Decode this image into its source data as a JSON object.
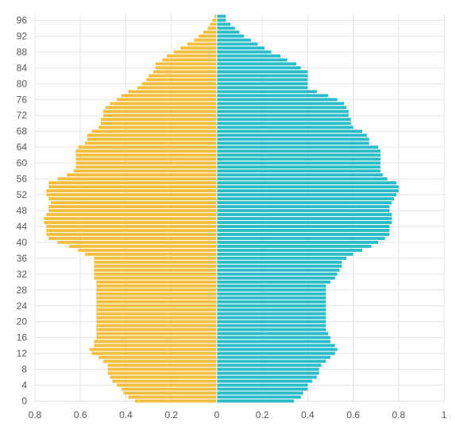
{
  "chart_data": {
    "type": "bar",
    "orientation": "horizontal",
    "subtype": "population-pyramid",
    "title": "",
    "xlabel": "",
    "ylabel": "",
    "grid": true,
    "legend": "none",
    "xlim": [
      -0.8,
      1.0
    ],
    "x_tick_values": [
      -0.8,
      -0.6,
      -0.4,
      -0.2,
      0,
      0.2,
      0.4,
      0.6,
      0.8,
      1
    ],
    "x_tick_labels": [
      "0.8",
      "0.6",
      "0.4",
      "0.2",
      "0",
      "0.2",
      "0.4",
      "0.6",
      "0.8",
      "1"
    ],
    "y_tick_labels": [
      "0",
      "4",
      "8",
      "12",
      "16",
      "20",
      "24",
      "28",
      "32",
      "36",
      "40",
      "44",
      "48",
      "52",
      "56",
      "60",
      "64",
      "68",
      "72",
      "76",
      "80",
      "84",
      "88",
      "92",
      "96"
    ],
    "categories": [
      "0",
      "1",
      "2",
      "3",
      "4",
      "5",
      "6",
      "7",
      "8",
      "9",
      "10",
      "11",
      "12",
      "13",
      "14",
      "15",
      "16",
      "17",
      "18",
      "19",
      "20",
      "21",
      "22",
      "23",
      "24",
      "25",
      "26",
      "27",
      "28",
      "29",
      "30",
      "31",
      "32",
      "33",
      "34",
      "35",
      "36",
      "37",
      "38",
      "39",
      "40",
      "41",
      "42",
      "43",
      "44",
      "45",
      "46",
      "47",
      "48",
      "49",
      "50",
      "51",
      "52",
      "53",
      "54",
      "55",
      "56",
      "57",
      "58",
      "59",
      "60",
      "61",
      "62",
      "63",
      "64",
      "65",
      "66",
      "67",
      "68",
      "69",
      "70",
      "71",
      "72",
      "73",
      "74",
      "75",
      "76",
      "77",
      "78",
      "79",
      "80",
      "81",
      "82",
      "83",
      "84",
      "85",
      "86",
      "87",
      "88",
      "89",
      "90",
      "91",
      "92",
      "93",
      "94",
      "95",
      "96",
      "97"
    ],
    "colors": {
      "left": "#F5BE3F",
      "right": "#2BBCC9"
    },
    "series": [
      {
        "side": "left",
        "values": [
          0.36,
          0.39,
          0.41,
          0.42,
          0.44,
          0.46,
          0.47,
          0.48,
          0.48,
          0.48,
          0.5,
          0.52,
          0.55,
          0.56,
          0.54,
          0.54,
          0.53,
          0.53,
          0.53,
          0.53,
          0.53,
          0.53,
          0.53,
          0.53,
          0.53,
          0.53,
          0.53,
          0.53,
          0.53,
          0.53,
          0.53,
          0.54,
          0.54,
          0.54,
          0.54,
          0.54,
          0.54,
          0.58,
          0.61,
          0.65,
          0.7,
          0.74,
          0.75,
          0.75,
          0.75,
          0.76,
          0.76,
          0.75,
          0.74,
          0.74,
          0.73,
          0.74,
          0.75,
          0.75,
          0.74,
          0.74,
          0.7,
          0.66,
          0.63,
          0.62,
          0.62,
          0.62,
          0.62,
          0.62,
          0.61,
          0.58,
          0.57,
          0.57,
          0.55,
          0.52,
          0.51,
          0.51,
          0.5,
          0.5,
          0.49,
          0.47,
          0.44,
          0.42,
          0.39,
          0.35,
          0.33,
          0.31,
          0.3,
          0.28,
          0.27,
          0.27,
          0.24,
          0.22,
          0.19,
          0.16,
          0.13,
          0.1,
          0.08,
          0.06,
          0.04,
          0.03,
          0.02,
          0.01
        ]
      },
      {
        "side": "right",
        "values": [
          0.34,
          0.37,
          0.38,
          0.4,
          0.4,
          0.42,
          0.44,
          0.45,
          0.45,
          0.46,
          0.48,
          0.5,
          0.52,
          0.53,
          0.52,
          0.5,
          0.5,
          0.49,
          0.48,
          0.48,
          0.48,
          0.48,
          0.48,
          0.48,
          0.48,
          0.48,
          0.48,
          0.48,
          0.48,
          0.48,
          0.5,
          0.52,
          0.53,
          0.54,
          0.55,
          0.55,
          0.57,
          0.6,
          0.64,
          0.68,
          0.71,
          0.74,
          0.76,
          0.76,
          0.76,
          0.77,
          0.77,
          0.77,
          0.76,
          0.76,
          0.77,
          0.78,
          0.79,
          0.8,
          0.8,
          0.79,
          0.75,
          0.73,
          0.72,
          0.72,
          0.72,
          0.72,
          0.72,
          0.72,
          0.71,
          0.67,
          0.67,
          0.66,
          0.64,
          0.6,
          0.59,
          0.59,
          0.58,
          0.58,
          0.57,
          0.56,
          0.53,
          0.49,
          0.44,
          0.4,
          0.4,
          0.4,
          0.4,
          0.4,
          0.37,
          0.35,
          0.31,
          0.28,
          0.24,
          0.21,
          0.18,
          0.15,
          0.12,
          0.1,
          0.08,
          0.06,
          0.04,
          0.04
        ]
      }
    ]
  }
}
